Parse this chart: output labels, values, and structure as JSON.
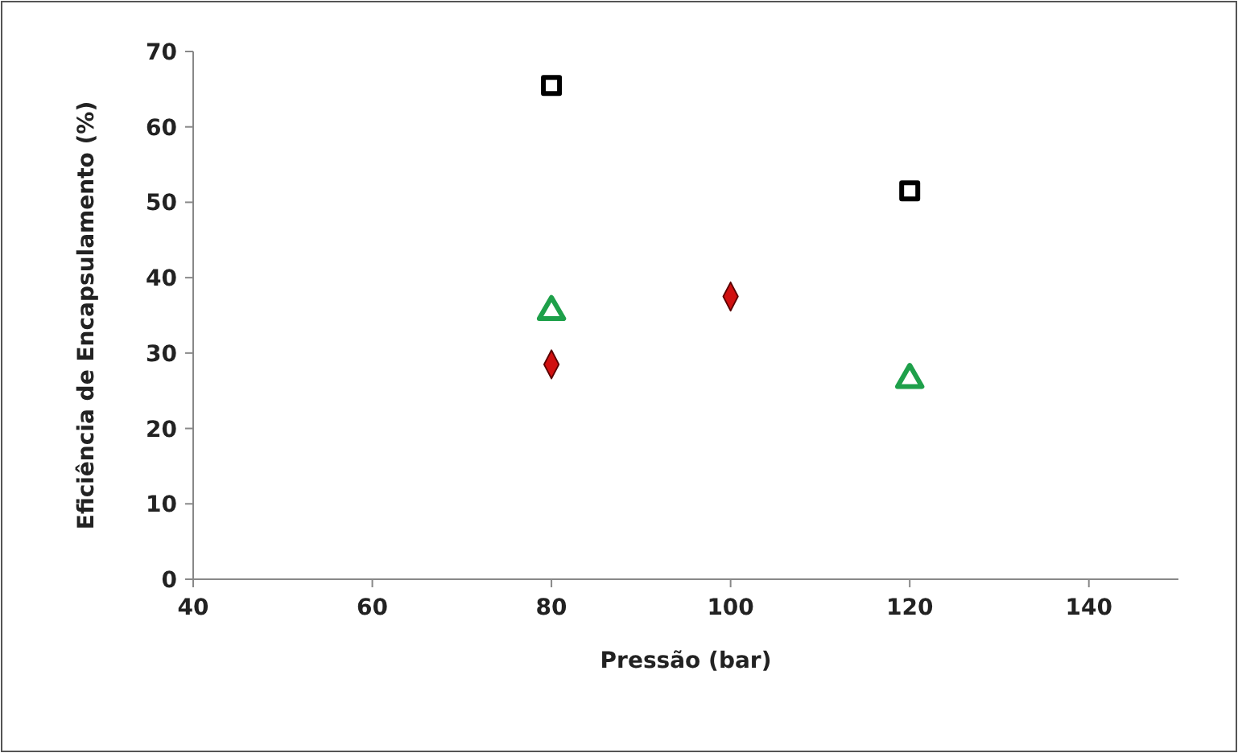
{
  "chart_data": {
    "type": "scatter",
    "xlabel": "Pressão (bar)",
    "ylabel": "Eficiência de Encapsulamento (%)",
    "xlim": [
      40,
      150
    ],
    "xticks": [
      40,
      60,
      80,
      100,
      120,
      140
    ],
    "ylim": [
      0,
      70
    ],
    "yticks": [
      0,
      10,
      20,
      30,
      40,
      50,
      60,
      70
    ],
    "grid": false,
    "series": [
      {
        "color": "#000000",
        "marker": "square",
        "x": [
          80,
          120
        ],
        "values": [
          65.5,
          51.5
        ]
      },
      {
        "color": "#1ea04a",
        "marker": "triangle",
        "x": [
          80,
          120
        ],
        "values": [
          35.5,
          26.5
        ]
      },
      {
        "color": "#d01010",
        "marker": "diamond",
        "x": [
          80,
          100
        ],
        "values": [
          28.5,
          37.5
        ]
      }
    ]
  }
}
